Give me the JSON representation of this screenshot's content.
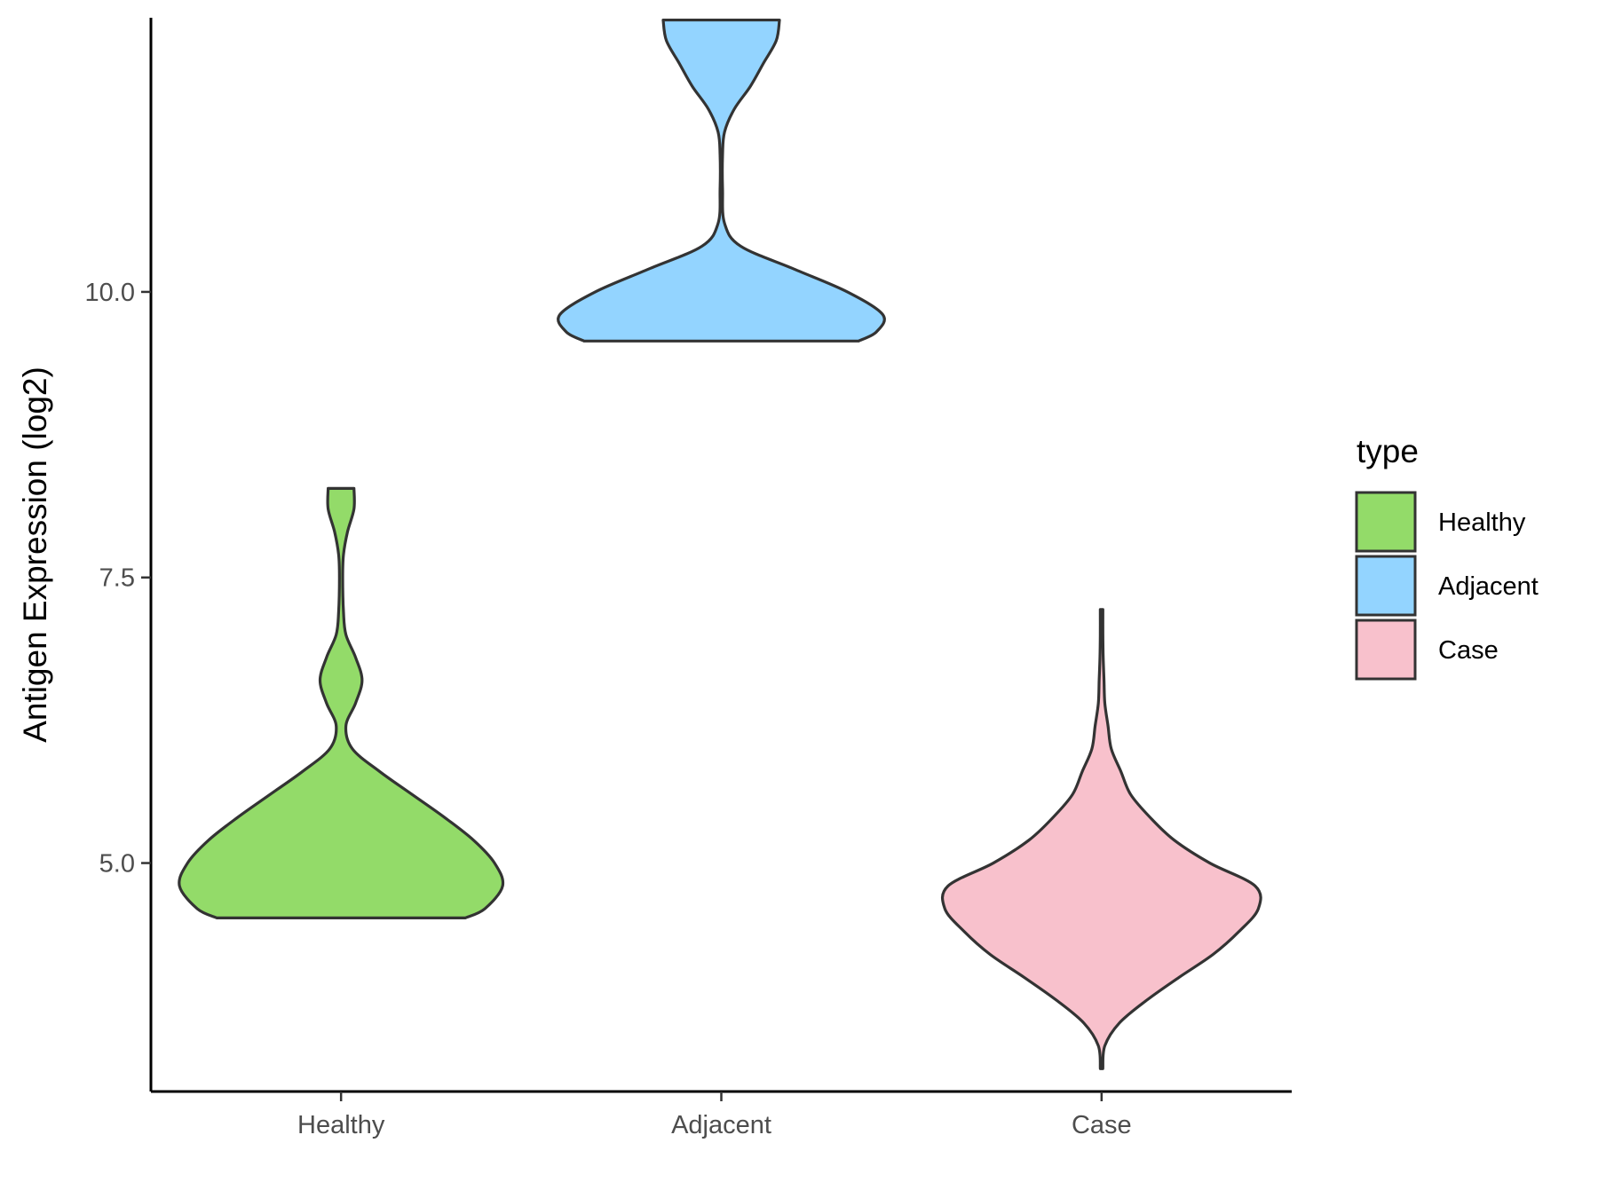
{
  "chart_data": {
    "type": "violin",
    "title": "",
    "xlabel": "",
    "ylabel": "Antigen Expression (log2)",
    "y_ticks": [
      5.0,
      7.5,
      10.0
    ],
    "y_tick_labels": [
      "5.0",
      "7.5",
      "10.0"
    ],
    "ylim": [
      3.0,
      12.4
    ],
    "categories": [
      "Healthy",
      "Adjacent",
      "Case"
    ],
    "grid": false,
    "legend": {
      "title": "type",
      "placement": "right",
      "entries": [
        {
          "name": "Healthy",
          "color": "#93db69"
        },
        {
          "name": "Adjacent",
          "color": "#93d4ff"
        },
        {
          "name": "Case",
          "color": "#f8c1cc"
        }
      ]
    },
    "series": [
      {
        "name": "Healthy",
        "color": "#93db69",
        "range": [
          4.52,
          8.28
        ],
        "density": [
          [
            4.52,
            0.77
          ],
          [
            4.6,
            0.89
          ],
          [
            4.8,
            1.0
          ],
          [
            5.0,
            0.95
          ],
          [
            5.2,
            0.82
          ],
          [
            5.4,
            0.64
          ],
          [
            5.6,
            0.44
          ],
          [
            5.8,
            0.24
          ],
          [
            6.0,
            0.07
          ],
          [
            6.2,
            0.03
          ],
          [
            6.4,
            0.09
          ],
          [
            6.6,
            0.13
          ],
          [
            6.8,
            0.09
          ],
          [
            7.0,
            0.03
          ],
          [
            7.2,
            0.015
          ],
          [
            7.5,
            0.01
          ],
          [
            7.7,
            0.015
          ],
          [
            7.9,
            0.04
          ],
          [
            8.1,
            0.08
          ],
          [
            8.28,
            0.08
          ]
        ]
      },
      {
        "name": "Adjacent",
        "color": "#93d4ff",
        "range": [
          9.57,
          12.38
        ],
        "density": [
          [
            9.57,
            0.85
          ],
          [
            9.65,
            0.96
          ],
          [
            9.8,
            1.0
          ],
          [
            10.0,
            0.78
          ],
          [
            10.2,
            0.45
          ],
          [
            10.4,
            0.12
          ],
          [
            10.6,
            0.02
          ],
          [
            10.9,
            0.005
          ],
          [
            11.2,
            0.005
          ],
          [
            11.4,
            0.02
          ],
          [
            11.6,
            0.08
          ],
          [
            11.8,
            0.18
          ],
          [
            12.0,
            0.26
          ],
          [
            12.2,
            0.34
          ],
          [
            12.38,
            0.36
          ]
        ]
      },
      {
        "name": "Case",
        "color": "#f8c1cc",
        "range": [
          3.2,
          7.22
        ],
        "density": [
          [
            3.2,
            0.005
          ],
          [
            3.4,
            0.02
          ],
          [
            3.6,
            0.11
          ],
          [
            3.8,
            0.28
          ],
          [
            4.0,
            0.48
          ],
          [
            4.2,
            0.69
          ],
          [
            4.4,
            0.85
          ],
          [
            4.6,
            0.97
          ],
          [
            4.8,
            0.95
          ],
          [
            5.0,
            0.67
          ],
          [
            5.2,
            0.45
          ],
          [
            5.4,
            0.3
          ],
          [
            5.6,
            0.18
          ],
          [
            5.8,
            0.12
          ],
          [
            6.0,
            0.06
          ],
          [
            6.2,
            0.04
          ],
          [
            6.4,
            0.02
          ],
          [
            6.6,
            0.015
          ],
          [
            6.8,
            0.01
          ],
          [
            7.0,
            0.008
          ],
          [
            7.22,
            0.008
          ]
        ]
      }
    ]
  }
}
